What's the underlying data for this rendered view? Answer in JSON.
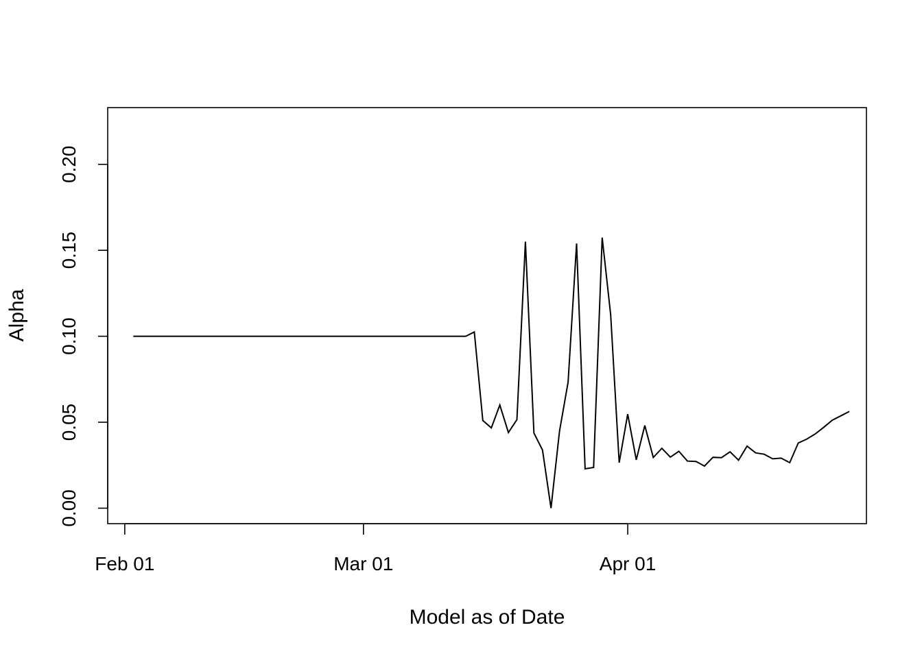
{
  "chart_data": {
    "type": "line",
    "title": "",
    "xlabel": "Model as of Date",
    "ylabel": "Alpha",
    "x_type": "date",
    "xlim": [
      "2017-01-30",
      "2017-04-29"
    ],
    "ylim": [
      -0.009,
      0.233
    ],
    "x_ticks": [
      {
        "date": "2017-02-01",
        "label": "Feb 01"
      },
      {
        "date": "2017-03-01",
        "label": "Mar 01"
      },
      {
        "date": "2017-04-01",
        "label": "Apr 01"
      }
    ],
    "y_ticks": [
      {
        "value": 0.0,
        "label": "0.00"
      },
      {
        "value": 0.05,
        "label": "0.05"
      },
      {
        "value": 0.1,
        "label": "0.10"
      },
      {
        "value": 0.15,
        "label": "0.15"
      },
      {
        "value": 0.2,
        "label": "0.20"
      }
    ],
    "grid": false,
    "series": [
      {
        "color": "#000000",
        "x": [
          "2017-02-02",
          "2017-03-13",
          "2017-03-14",
          "2017-03-15",
          "2017-03-16",
          "2017-03-17",
          "2017-03-18",
          "2017-03-19",
          "2017-03-20",
          "2017-03-21",
          "2017-03-22",
          "2017-03-23",
          "2017-03-24",
          "2017-03-25",
          "2017-03-26",
          "2017-03-27",
          "2017-03-28",
          "2017-03-29",
          "2017-03-30",
          "2017-03-31",
          "2017-04-01",
          "2017-04-02",
          "2017-04-03",
          "2017-04-04",
          "2017-04-05",
          "2017-04-06",
          "2017-04-07",
          "2017-04-08",
          "2017-04-09",
          "2017-04-10",
          "2017-04-11",
          "2017-04-12",
          "2017-04-13",
          "2017-04-14",
          "2017-04-15",
          "2017-04-16",
          "2017-04-17",
          "2017-04-18",
          "2017-04-19",
          "2017-04-20",
          "2017-04-21",
          "2017-04-22",
          "2017-04-23",
          "2017-04-24",
          "2017-04-25",
          "2017-04-26",
          "2017-04-27"
        ],
        "y": [
          0.1,
          0.1,
          0.1025,
          0.051,
          0.0467,
          0.06,
          0.044,
          0.0515,
          0.155,
          0.0437,
          0.0338,
          0.0,
          0.0448,
          0.0733,
          0.154,
          0.0229,
          0.0237,
          0.1574,
          0.1124,
          0.0265,
          0.0547,
          0.0281,
          0.0481,
          0.0295,
          0.0348,
          0.0297,
          0.0331,
          0.0274,
          0.0272,
          0.0245,
          0.0296,
          0.0294,
          0.0328,
          0.0279,
          0.0361,
          0.0322,
          0.0314,
          0.0287,
          0.0291,
          0.0265,
          0.0379,
          0.0402,
          0.0432,
          0.0471,
          0.0512,
          0.0537,
          0.0563
        ]
      }
    ]
  }
}
